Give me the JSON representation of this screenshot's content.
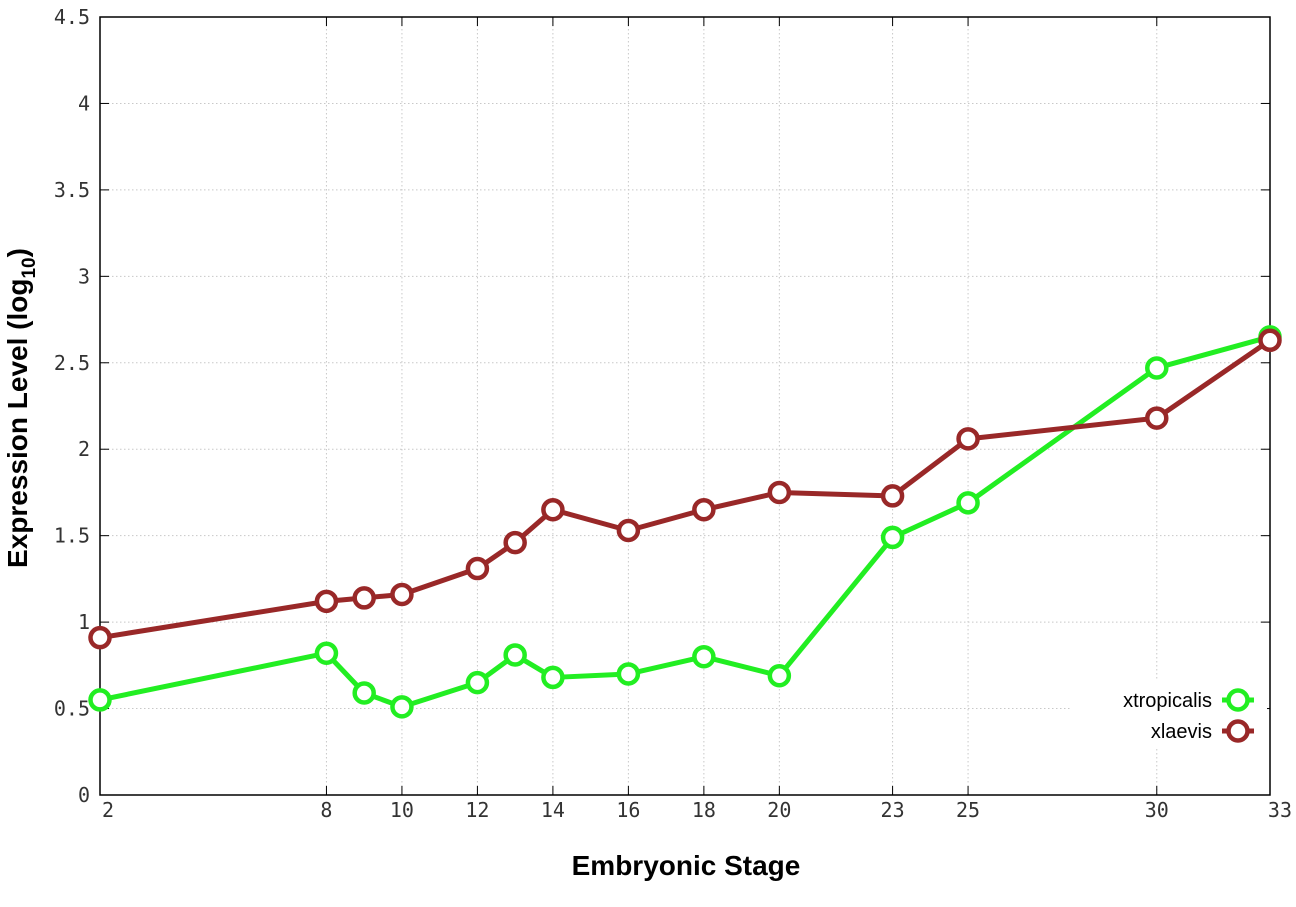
{
  "chart_data": {
    "type": "line",
    "xlabel": "Embryonic Stage",
    "ylabel_main": "Expression Level (log",
    "ylabel_sub": "10",
    "ylabel_close": ")",
    "x": [
      2,
      8,
      9,
      10,
      12,
      13,
      14,
      16,
      18,
      20,
      23,
      25,
      30,
      33
    ],
    "x_ticks": [
      2,
      8,
      10,
      12,
      14,
      16,
      18,
      20,
      23,
      25,
      30,
      33
    ],
    "x_tick_labels": [
      "2",
      "8",
      "10",
      "12",
      "14",
      "16",
      "18",
      "20",
      "23",
      "25",
      "30",
      "33"
    ],
    "xlim": [
      2,
      33
    ],
    "y_ticks": [
      0,
      0.5,
      1,
      1.5,
      2,
      2.5,
      3,
      3.5,
      4,
      4.5
    ],
    "y_tick_labels": [
      "0",
      "0.5",
      "1",
      "1.5",
      "2",
      "2.5",
      "3",
      "3.5",
      "4",
      "4.5"
    ],
    "ylim": [
      0,
      4.5
    ],
    "grid": true,
    "legend_position": "bottom-right",
    "series": [
      {
        "name": "xtropicalis",
        "color": "#22ee22",
        "values": [
          0.55,
          0.82,
          0.59,
          0.51,
          0.65,
          0.81,
          0.68,
          0.7,
          0.8,
          0.69,
          1.49,
          1.69,
          2.47,
          2.65
        ]
      },
      {
        "name": "xlaevis",
        "color": "#992828",
        "values": [
          0.91,
          1.12,
          1.14,
          1.16,
          1.31,
          1.46,
          1.65,
          1.53,
          1.65,
          1.75,
          1.73,
          2.06,
          2.18,
          2.63
        ]
      }
    ]
  }
}
